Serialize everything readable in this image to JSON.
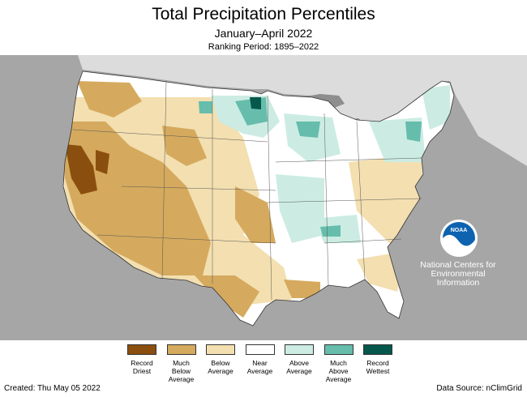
{
  "title": "Total Precipitation Percentiles",
  "subtitle": "January–April 2022",
  "ranking_period": "Ranking Period: 1895–2022",
  "colors": {
    "record_driest": "#8a4f0e",
    "much_below": "#d5aa5e",
    "below": "#f3dfb0",
    "near": "#ffffff",
    "above": "#ccece3",
    "much_above": "#66bdac",
    "record_wettest": "#05574b",
    "land_background": "#a6a6a6",
    "water": "#dedede"
  },
  "legend": [
    {
      "label": "Record\nDriest",
      "color": "#8a4f0e"
    },
    {
      "label": "Much\nBelow\nAverage",
      "color": "#d5aa5e"
    },
    {
      "label": "Below\nAverage",
      "color": "#f3dfb0"
    },
    {
      "label": "Near\nAverage",
      "color": "#ffffff"
    },
    {
      "label": "Above\nAverage",
      "color": "#ccece3"
    },
    {
      "label": "Much\nAbove\nAverage",
      "color": "#66bdac"
    },
    {
      "label": "Record\nWettest",
      "color": "#05574b"
    }
  ],
  "logo": {
    "text": "NOAA",
    "icon": "noaa-logo-icon"
  },
  "credit": "National Centers for\nEnvironmental\nInformation",
  "created": "Created: Thu May 05 2022",
  "source": "Data Source: nClimGrid"
}
